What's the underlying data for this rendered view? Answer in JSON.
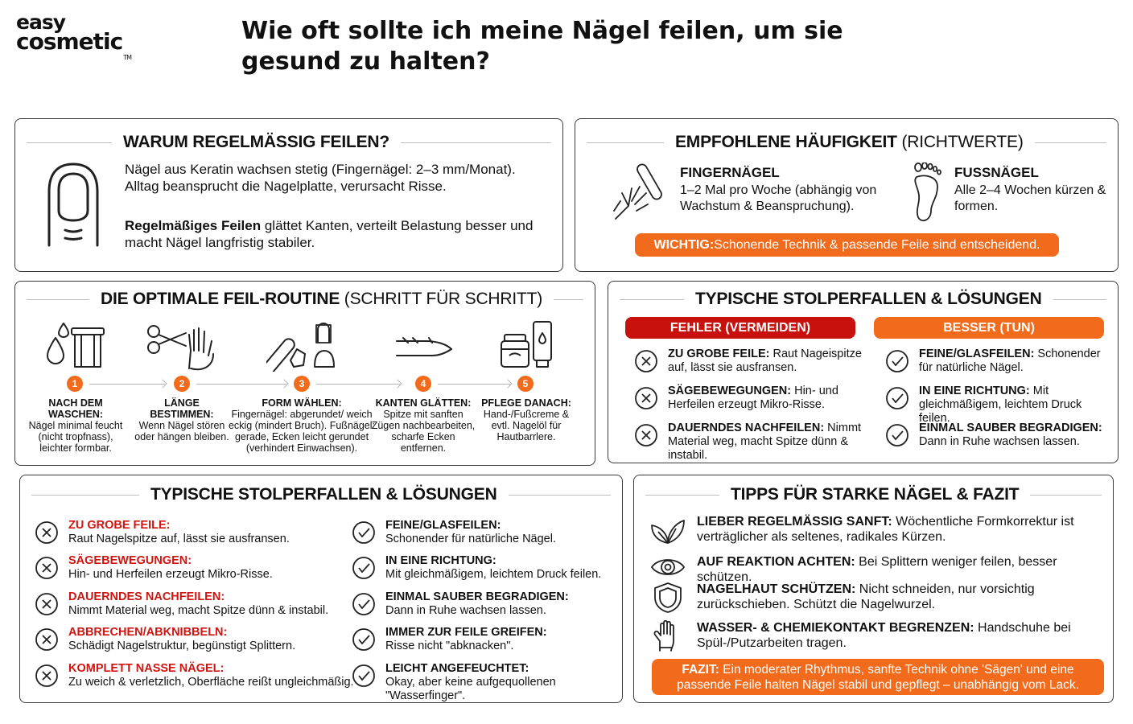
{
  "logo": {
    "line1": "easy",
    "line2": "cosmetic",
    "tm": "TM"
  },
  "page_title": "Wie oft sollte ich meine Nägel feilen, um sie gesund zu halten?",
  "why": {
    "title": "WARUM REGELMÄSSIG FEILEN?",
    "p1": "Nägel aus Keratin wachsen stetig (Fingernägel: 2–3 mm/Monat). Alltag beansprucht die Nagelplatte, verursacht Risse.",
    "p2_bold": "Regelmäßiges Feilen",
    "p2_rest": " glättet Kanten, verteilt Belastung besser und macht Nägel langfristig stabiler.",
    "icon": "fingernail-icon"
  },
  "freq": {
    "title": "EMPFOHLENE HÄUFIGKEIT",
    "title_thin": " (RICHTWERTE)",
    "finger_title": "FINGERNÄGEL",
    "finger_text": "1–2 Mal pro Woche (abhängig von Wachstum & Beanspruchung).",
    "foot_title": "FUSSNÄGEL",
    "foot_text": "Alle 2–4 Wochen kürzen & formen.",
    "important_bold": "WICHTIG:",
    "important_rest": " Schonende Technik & passende Feile sind entscheidend.",
    "accent": "#f26a1b"
  },
  "routine": {
    "title": "DIE OPTIMALE FEIL-ROUTINE",
    "title_thin": " (SCHRITT FÜR SCHRITT)",
    "steps": [
      {
        "num": "1",
        "title": "NACH DEM WASCHEN:",
        "text": "Nägel minimal feucht (nicht tropfnass), leichter formbar.",
        "icon": "water-drop-towel-icon"
      },
      {
        "num": "2",
        "title": "LÄNGE BESTIMMEN:",
        "text": "Wenn Nägel stören oder hängen bleiben.",
        "icon": "scissors-hand-icon"
      },
      {
        "num": "3",
        "title": "FORM WÄHLEN:",
        "text": "Fingernägel: abgerundet/ weich eckig (mindert Bruch). Fußnägel: gerade, Ecken leicht gerundet (verhindert Einwachsen).",
        "icon": "nail-file-shapes-icon"
      },
      {
        "num": "4",
        "title": "KANTEN GLÄTTEN:",
        "text": "Spitze mit sanften Zügen nachbearbeiten, scharfe Ecken entfernen.",
        "icon": "nail-edge-icon"
      },
      {
        "num": "5",
        "title": "PFLEGE DANACH:",
        "text": "Hand-/Fußcreme & evtl. Nagelöl für Hautbarrlere.",
        "icon": "cream-tube-icon"
      }
    ]
  },
  "pitfalls_small": {
    "title": "TYPISCHE STOLPERFALLEN & LÖSUNGEN",
    "bad_label": "FEHLER (VERMEIDEN)",
    "good_label": "BESSER (TUN)",
    "bad_color": "#c8100d",
    "good_color": "#f26a1b",
    "bad": [
      {
        "head": "ZU GROBE FEILE:",
        "text": " Raut Nageispitze auf, lässt sie ausfransen."
      },
      {
        "head": "SÄGEBEWEGUNGEN:",
        "text": " Hin- und Herfeilen erzeugt Mikro-Risse."
      },
      {
        "head": "DAUERNDES NACHFEILEN:",
        "text": " Nimmt Material weg, macht Spitze dünn & instabil."
      }
    ],
    "good": [
      {
        "head": "FEINE/GLASFEILEN:",
        "text": " Schonender für natürliche Nägel."
      },
      {
        "head": "IN EINE RICHTUNG:",
        "text": " Mit gleichmäßigem, leichtem Druck feilen."
      },
      {
        "head": "EINMAL SAUBER BEGRADIGEN:",
        "text": " Dann in Ruhe wachsen lassen."
      }
    ]
  },
  "pitfalls_big": {
    "title": "TYPISCHE STOLPERFALLEN & LÖSUNGEN",
    "bad": [
      {
        "head": "ZU GROBE FEILE:",
        "text": "Raut Nagelspitze auf, lässt sie ausfransen."
      },
      {
        "head": "SÄGEBEWEGUNGEN:",
        "text": "Hin- und Herfeilen erzeugt Mikro-Risse."
      },
      {
        "head": "DAUERNDES NACHFEILEN:",
        "text": "Nimmt Material weg, macht Spitze dünn & instabil."
      },
      {
        "head": "ABBRECHEN/ABKNIBBELN:",
        "text": "Schädigt Nagelstruktur, begünstigt Splittern."
      },
      {
        "head": "KOMPLETT NASSE NÄGEL:",
        "text": "Zu weich & verletzlich, Oberfläche reißt ungleichmäßig."
      }
    ],
    "good": [
      {
        "head": "FEINE/GLASFEILEN:",
        "text": "Schonender für natürliche Nägel."
      },
      {
        "head": "IN EINE RICHTUNG:",
        "text": "Mit gleichmäßigem, leichtem Druck feilen."
      },
      {
        "head": "EINMAL SAUBER BEGRADIGEN:",
        "text": "Dann in Ruhe wachsen lassen."
      },
      {
        "head": "IMMER ZUR FEILE GREIFEN:",
        "text": "Risse nicht \"abknacken\"."
      },
      {
        "head": "LEICHT ANGEFEUCHTET:",
        "text": "Okay, aber keine aufgequollenen \"Wasserfinger\"."
      }
    ]
  },
  "tips": {
    "title": "TIPPS FÜR STARKE NÄGEL & FAZIT",
    "items": [
      {
        "head": "LIEBER REGELMÄSSIG SANFT:",
        "text": " Wöchentliche Formkorrektur ist verträglicher als seltenes, radikales Kürzen.",
        "icon": "leaf-icon"
      },
      {
        "head": "AUF REAKTION ACHTEN:",
        "text": " Bei Splittern weniger feilen, besser schützen.",
        "icon": "eye-icon"
      },
      {
        "head": "NAGELHAUT SCHÜTZEN:",
        "text": " Nicht schneiden, nur vorsichtig zurückschieben. Schützt die Nagelwurzel.",
        "icon": "shield-icon"
      },
      {
        "head": "WASSER- & CHEMIEKONTAKT BEGRENZEN:",
        "text": " Handschuhe bei Spül-/Putzarbeiten tragen.",
        "icon": "glove-icon"
      }
    ],
    "fazit_bold": "FAZIT:",
    "fazit_rest": " Ein moderater Rhythmus, sanfte Technik ohne 'Sägen' und eine passende Feile halten Nägel stabil und gepflegt – unabhängig vom Lack."
  }
}
